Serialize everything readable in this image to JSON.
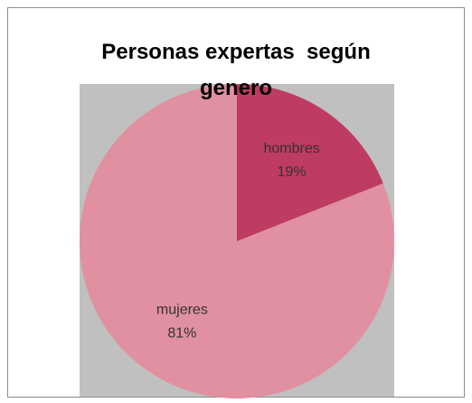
{
  "chart_data": {
    "type": "pie",
    "title": "Personas expertas  según genero",
    "categories": [
      "hombres",
      "mujeres"
    ],
    "values": [
      19,
      81
    ],
    "value_labels": [
      "19%",
      "81%"
    ],
    "colors": [
      "#be3b62",
      "#e090a0"
    ]
  }
}
